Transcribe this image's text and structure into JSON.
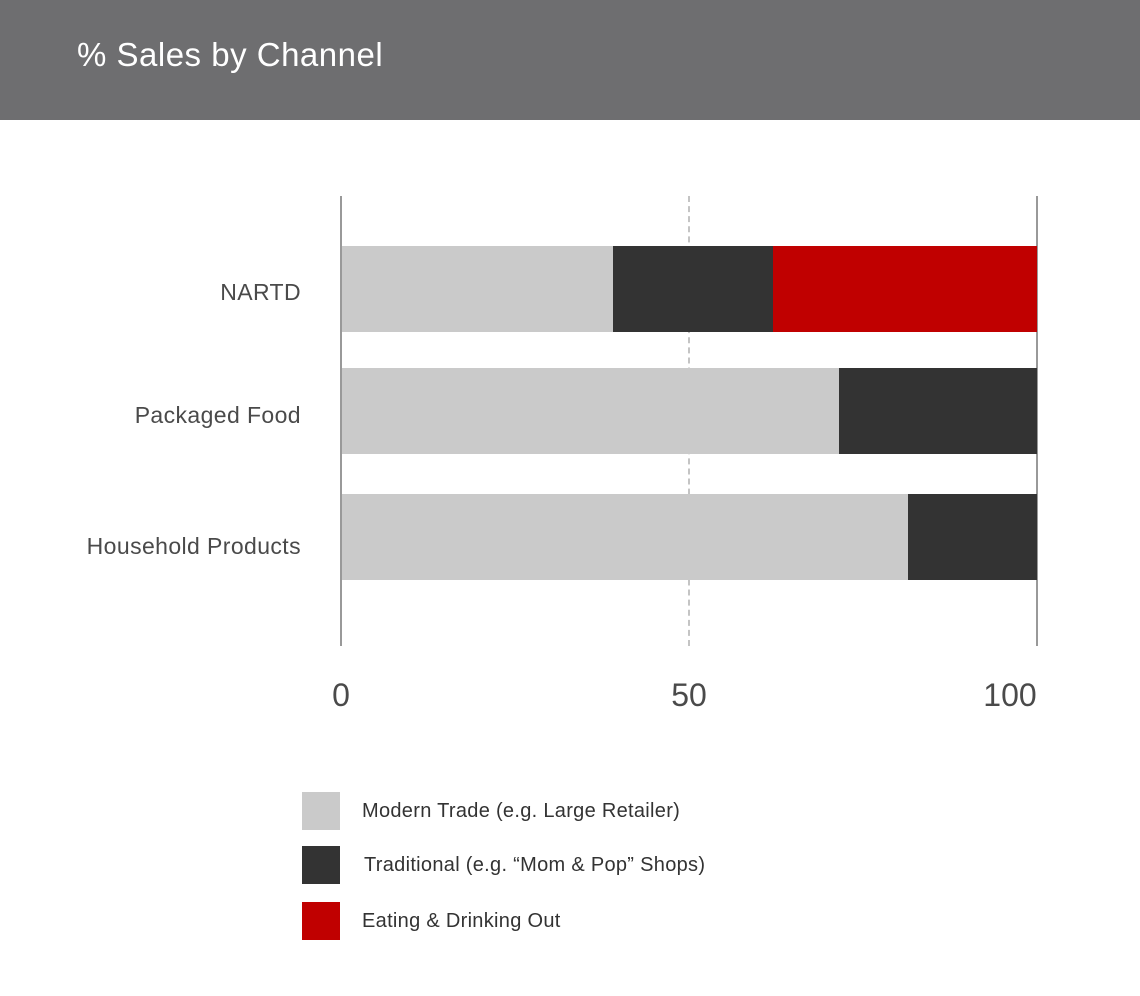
{
  "header": {
    "title": "% Sales by Channel"
  },
  "colors": {
    "header_bg": "#6e6e70",
    "modern_trade": "#cacaca",
    "traditional": "#333333",
    "eating_drinking_out": "#c00000"
  },
  "chart_data": {
    "type": "bar",
    "orientation": "horizontal",
    "stacked": true,
    "title": "% Sales by Channel",
    "xlabel": "",
    "ylabel": "",
    "xlim": [
      0,
      100
    ],
    "x_ticks": [
      "0",
      "50",
      "100"
    ],
    "reference_line": {
      "x": 50,
      "style": "dashed"
    },
    "grid": false,
    "legend_position": "bottom",
    "categories": [
      "NARTD",
      "Packaged Food",
      "Household Products"
    ],
    "series": [
      {
        "name": "Modern Trade (e.g. Large Retailer)",
        "color": "#cacaca",
        "values": [
          39,
          71.5,
          81.5
        ]
      },
      {
        "name": "Traditional (e.g. “Mom & Pop” Shops)",
        "color": "#333333",
        "values": [
          23,
          28.5,
          18.5
        ]
      },
      {
        "name": "Eating & Drinking Out",
        "color": "#c00000",
        "values": [
          38,
          0,
          0
        ]
      }
    ]
  },
  "axis": {
    "ticks": [
      "0",
      "50",
      "100"
    ]
  },
  "legend": [
    {
      "label": "Modern Trade (e.g. Large Retailer)"
    },
    {
      "label": "Traditional (e.g. “Mom & Pop” Shops)"
    },
    {
      "label": "Eating & Drinking Out"
    }
  ]
}
